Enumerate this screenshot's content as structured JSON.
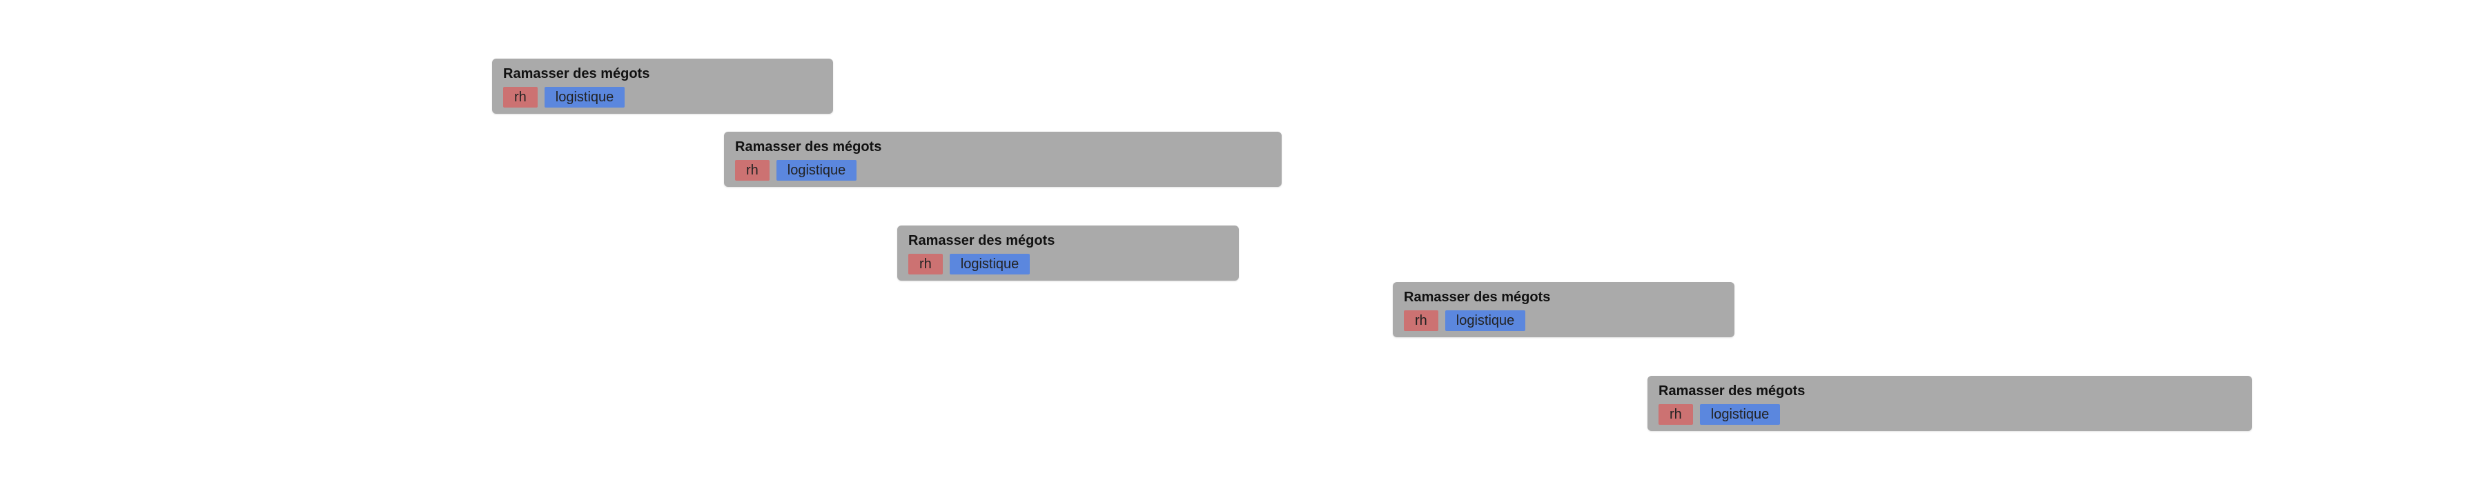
{
  "colors": {
    "background": "#ffffff",
    "card": "#aaaaaa",
    "tag_rh": "#cc7272",
    "tag_logistique": "#5b87de"
  },
  "tasks": [
    {
      "title": "Ramasser des mégots",
      "tags": [
        "rh",
        "logistique"
      ]
    },
    {
      "title": "Ramasser des mégots",
      "tags": [
        "rh",
        "logistique"
      ]
    },
    {
      "title": "Ramasser des mégots",
      "tags": [
        "rh",
        "logistique"
      ]
    },
    {
      "title": "Ramasser des mégots",
      "tags": [
        "rh",
        "logistique"
      ]
    },
    {
      "title": "Ramasser des mégots",
      "tags": [
        "rh",
        "logistique"
      ]
    }
  ]
}
